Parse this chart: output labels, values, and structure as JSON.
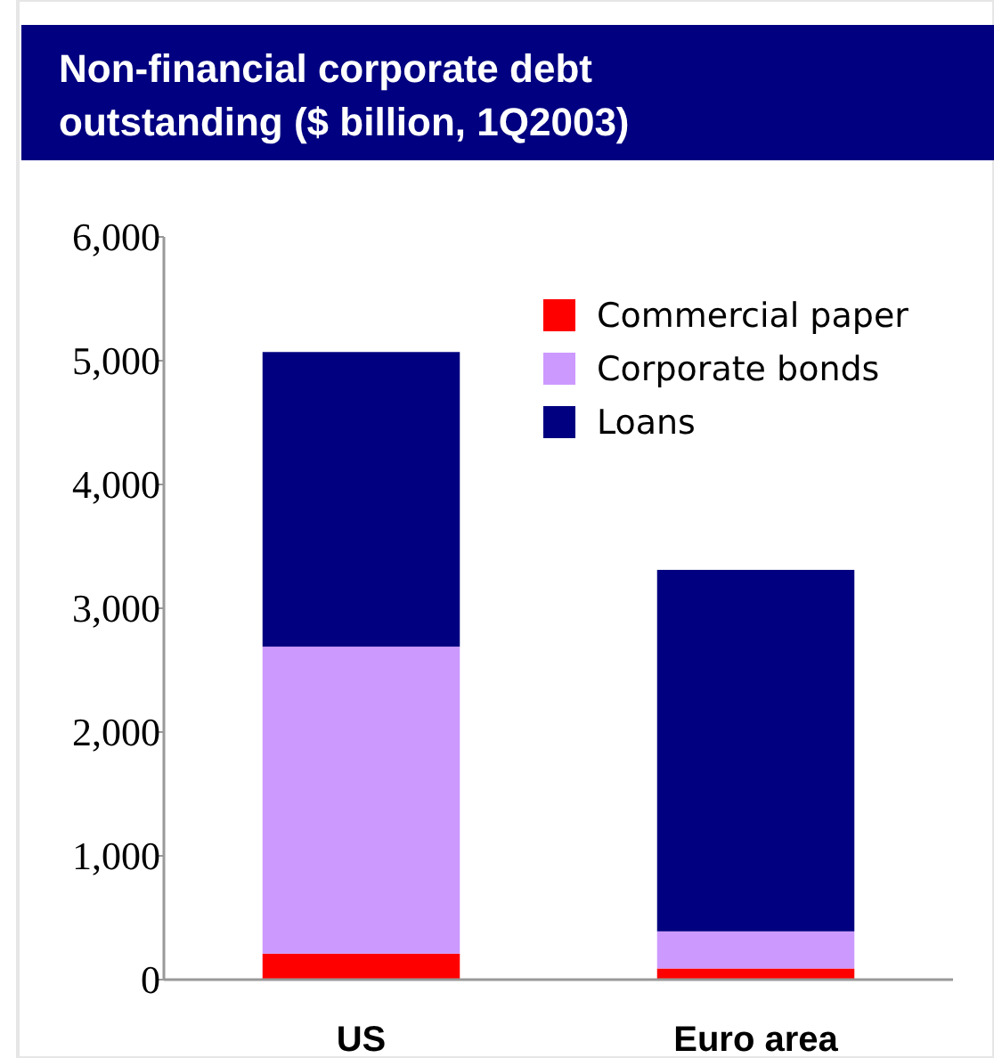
{
  "chart_data": {
    "type": "bar",
    "title": "Non-financial corporate debt outstanding ($ billion, 1Q2003)",
    "categories": [
      "US",
      "Euro area"
    ],
    "stacked": true,
    "series": [
      {
        "name": "Commercial paper",
        "color": "#ff0000",
        "values": [
          210,
          90
        ]
      },
      {
        "name": "Corporate bonds",
        "color": "#cc99ff",
        "values": [
          2480,
          300
        ]
      },
      {
        "name": "Loans",
        "color": "#000080",
        "values": [
          2380,
          2920
        ]
      }
    ],
    "ylim": [
      0,
      6000
    ],
    "yticks": [
      {
        "value": 0,
        "label": "0"
      },
      {
        "value": 1000,
        "label": "1,000"
      },
      {
        "value": 2000,
        "label": "2,000"
      },
      {
        "value": 3000,
        "label": "3,000"
      },
      {
        "value": 4000,
        "label": "4,000"
      },
      {
        "value": 5000,
        "label": "5,000"
      },
      {
        "value": 6000,
        "label": "6,000"
      }
    ],
    "grid": false,
    "legend": "top right"
  }
}
